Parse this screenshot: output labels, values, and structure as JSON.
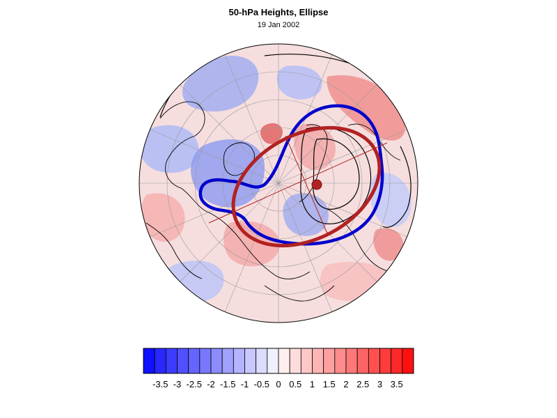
{
  "header": {
    "title": "50-hPa Heights, Ellipse",
    "date": "19 Jan 2002"
  },
  "colorbar": {
    "colors": [
      "#1010ff",
      "#2828ff",
      "#3c3cff",
      "#5050ff",
      "#6464ff",
      "#7878ff",
      "#8c8cff",
      "#a0a0ff",
      "#b4b4ff",
      "#c8c8ff",
      "#dcdcff",
      "#f0f0ff",
      "#fff0f0",
      "#ffdcdc",
      "#ffc8c8",
      "#ffb4b4",
      "#ffa0a0",
      "#ff8c8c",
      "#ff7878",
      "#ff6464",
      "#ff5050",
      "#ff3c3c",
      "#ff2828",
      "#ff1010"
    ],
    "tick_labels": [
      "-3.5",
      "-3",
      "-2.5",
      "-2",
      "-1.5",
      "-1",
      "-0.5",
      "0",
      "0.5",
      "1",
      "1.5",
      "2",
      "2.5",
      "3",
      "3.5"
    ],
    "min": -4.0,
    "max": 4.0
  },
  "map_style": {
    "ellipse_color": "#b22222",
    "contour_color": "#0000cc",
    "background_low": "#9aa6f2",
    "background_high": "#f4a0a0"
  }
}
